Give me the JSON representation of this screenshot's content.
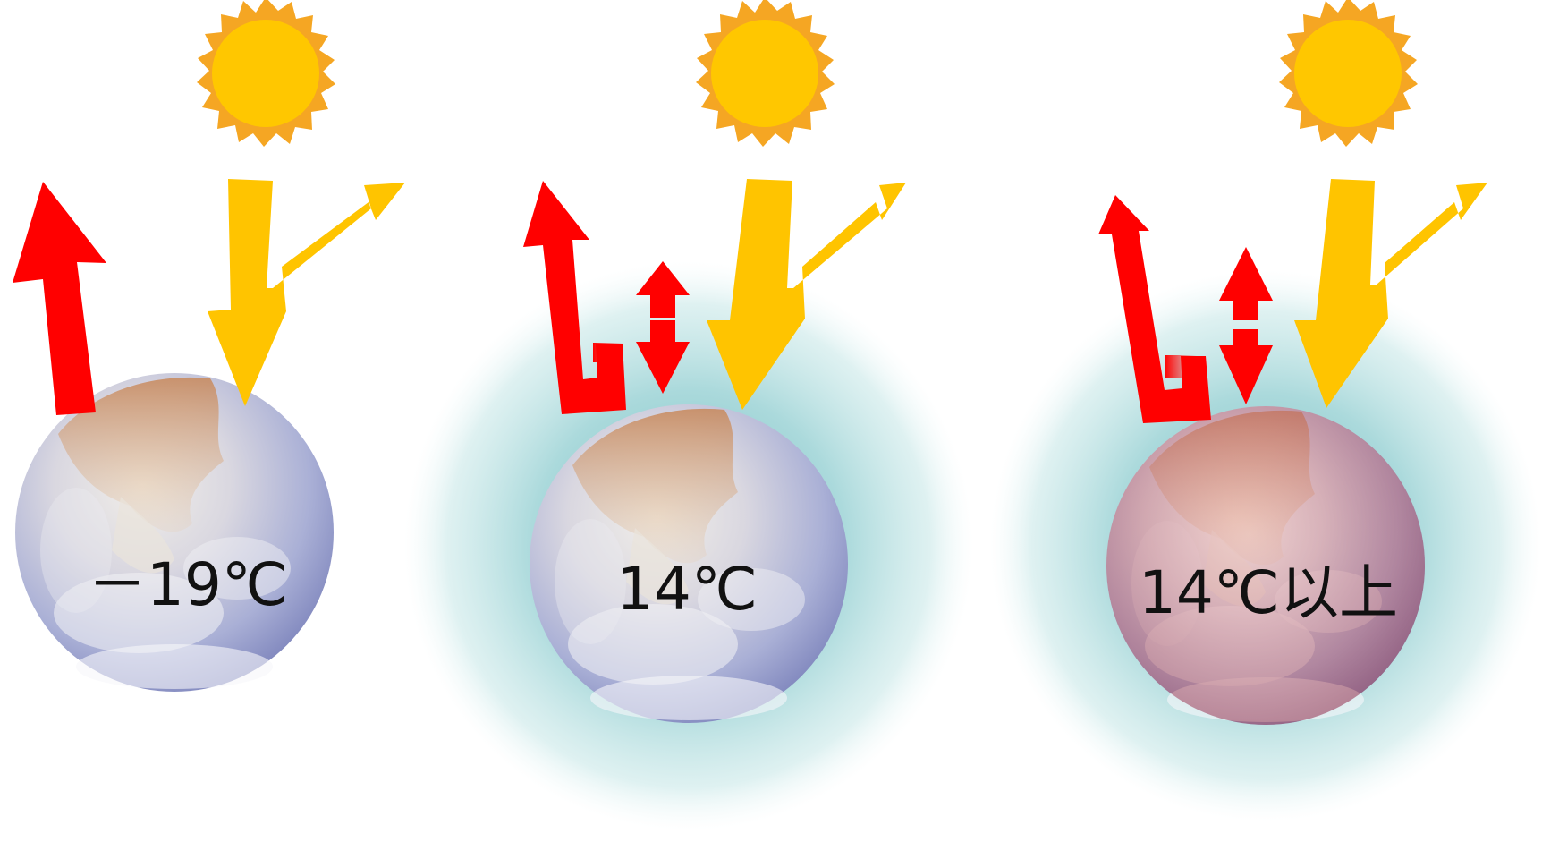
{
  "panels": [
    {
      "temperature_label": "－19℃",
      "atmosphere": false,
      "tint": "none"
    },
    {
      "temperature_label": "14℃",
      "atmosphere": true,
      "tint": "none"
    },
    {
      "temperature_label": "14℃以上",
      "atmosphere": true,
      "tint": "red"
    }
  ],
  "colors": {
    "sun": "#FFC700",
    "sun_rays": "#F5A623",
    "solar_arrow": "#FFC400",
    "heat_arrow": "#FF0000",
    "atmosphere": "#B8E2E2",
    "earth_ocean": "#9AA6D6",
    "earth_land": "#C9A27A",
    "warm_tint": "#C06060"
  },
  "icons": [
    "sun-icon",
    "earth-icon",
    "atmosphere-layer",
    "heat-arrow",
    "solar-arrow",
    "double-arrow"
  ]
}
